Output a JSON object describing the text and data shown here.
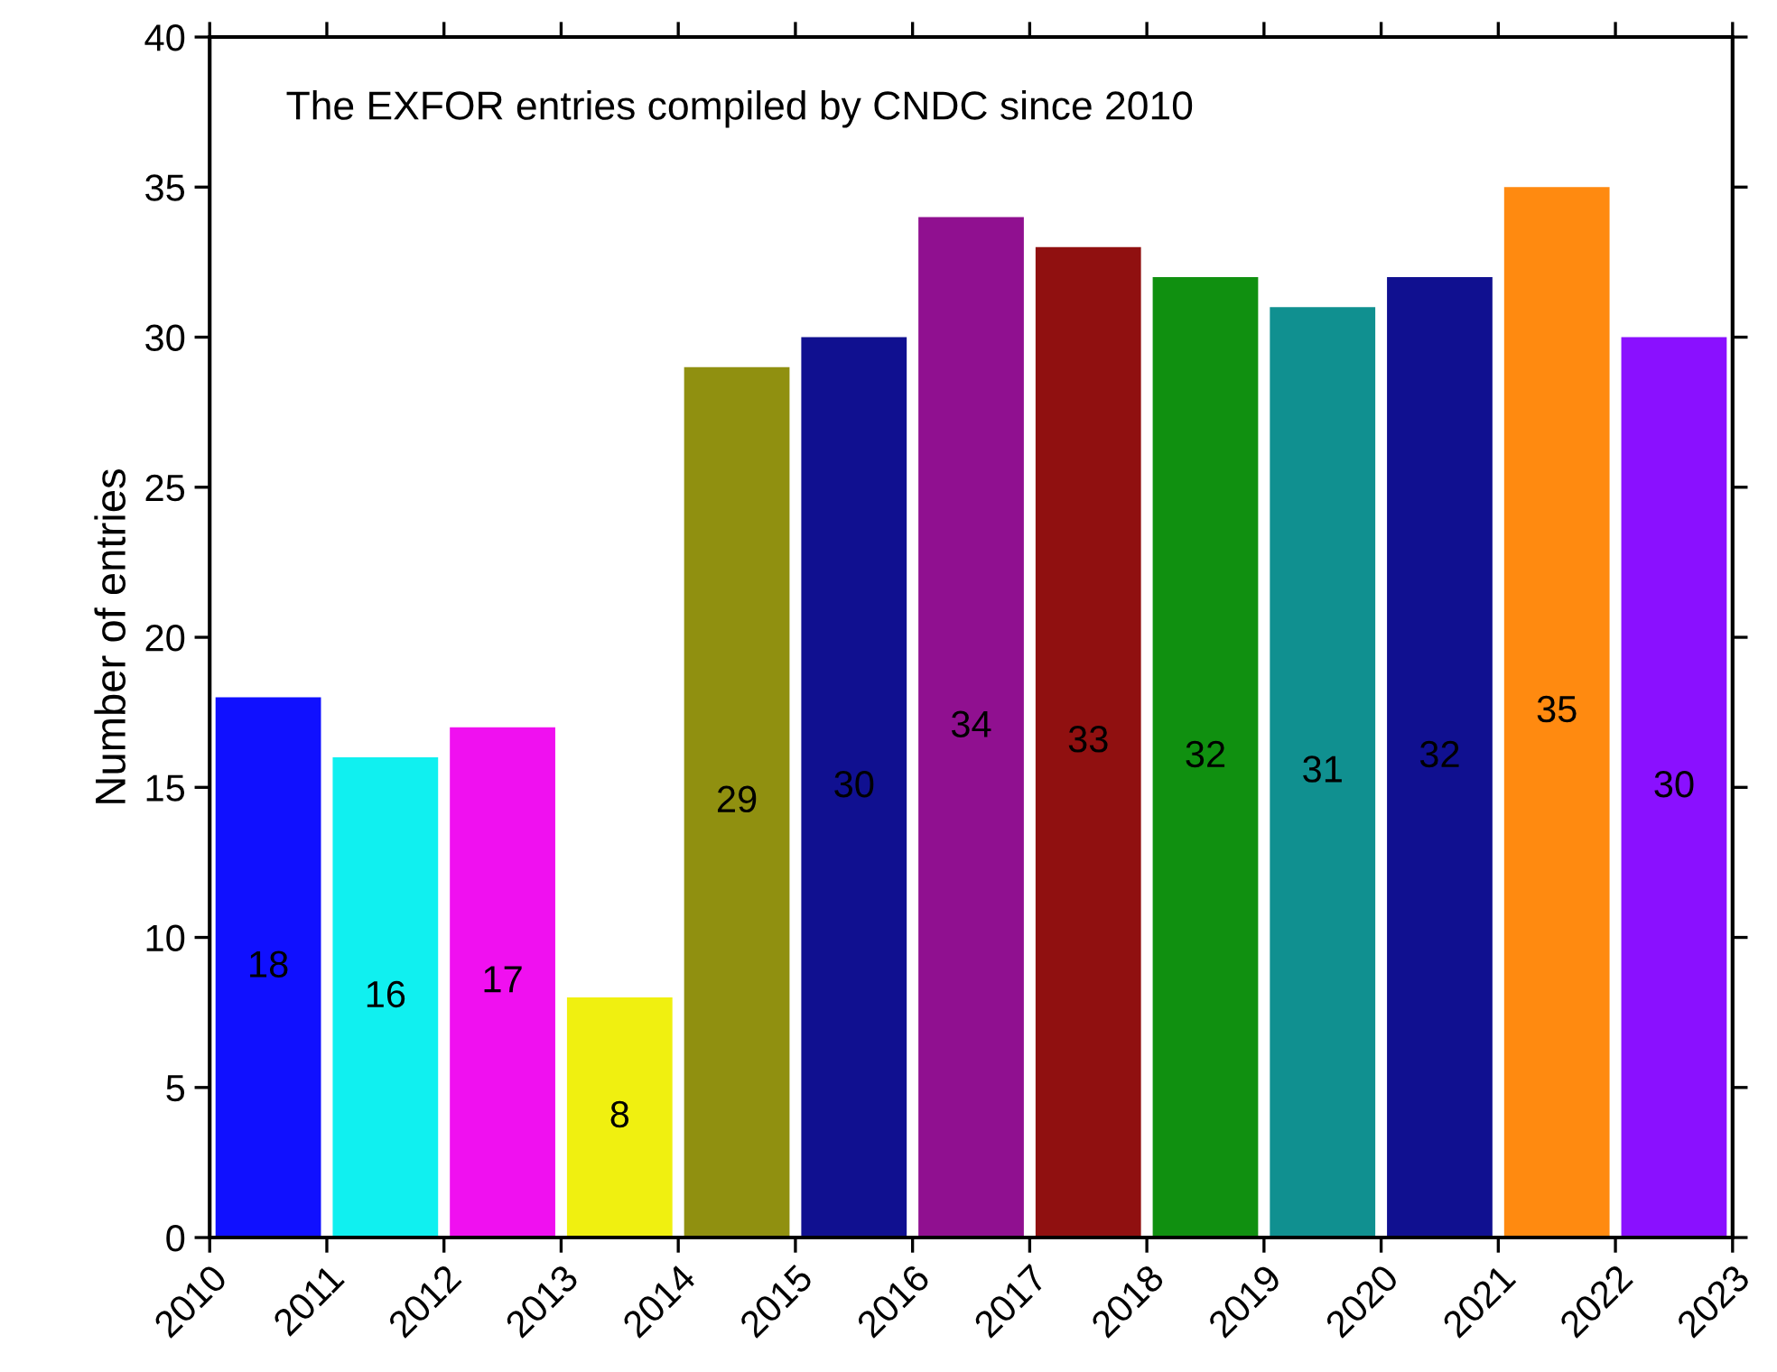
{
  "chart_data": {
    "type": "bar",
    "title": "The EXFOR entries compiled by CNDC since 2010",
    "ylabel": "Number of entries",
    "x": [
      2010.5,
      2011.5,
      2012.5,
      2013.5,
      2014.5,
      2015.5,
      2016.5,
      2017.5,
      2018.5,
      2019.5,
      2020.5,
      2021.5,
      2022.5
    ],
    "values": [
      18,
      16,
      17,
      8,
      29,
      30,
      34,
      33,
      32,
      31,
      32,
      35,
      30
    ],
    "colors": [
      "#1010ff",
      "#10f0f0",
      "#f010f0",
      "#f0f010",
      "#909010",
      "#101090",
      "#901090",
      "#901010",
      "#109010",
      "#109090",
      "#101090",
      "#ff8a10",
      "#8a10ff"
    ],
    "xlim": [
      2010,
      2023
    ],
    "xticks": [
      2010,
      2011,
      2012,
      2013,
      2014,
      2015,
      2016,
      2017,
      2018,
      2019,
      2020,
      2021,
      2022,
      2023
    ],
    "ylim": [
      0,
      40
    ],
    "yticks": [
      0,
      5,
      10,
      15,
      20,
      25,
      30,
      35,
      40
    ],
    "data_labels": true,
    "grid": false,
    "legend": false
  }
}
